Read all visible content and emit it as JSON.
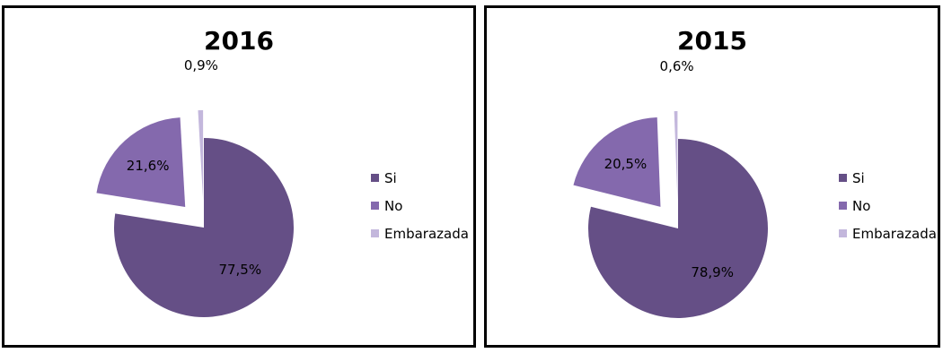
{
  "colors": {
    "Si": "#654f86",
    "No": "#8469ad",
    "Embarazada": "#c3b7dc"
  },
  "chart_data": [
    {
      "type": "pie",
      "title": "2016",
      "categories": [
        "Si",
        "No",
        "Embarazada"
      ],
      "values": [
        77.5,
        21.6,
        0.9
      ],
      "data_labels": [
        "77,5%",
        "21,6%",
        "0,9%"
      ],
      "exploded": true,
      "legend": "right"
    },
    {
      "type": "pie",
      "title": "2015",
      "categories": [
        "Si",
        "No",
        "Embarazada"
      ],
      "values": [
        78.9,
        20.5,
        0.6
      ],
      "data_labels": [
        "78,9%",
        "20,5%",
        "0,6%"
      ],
      "exploded": true,
      "legend": "right"
    }
  ]
}
